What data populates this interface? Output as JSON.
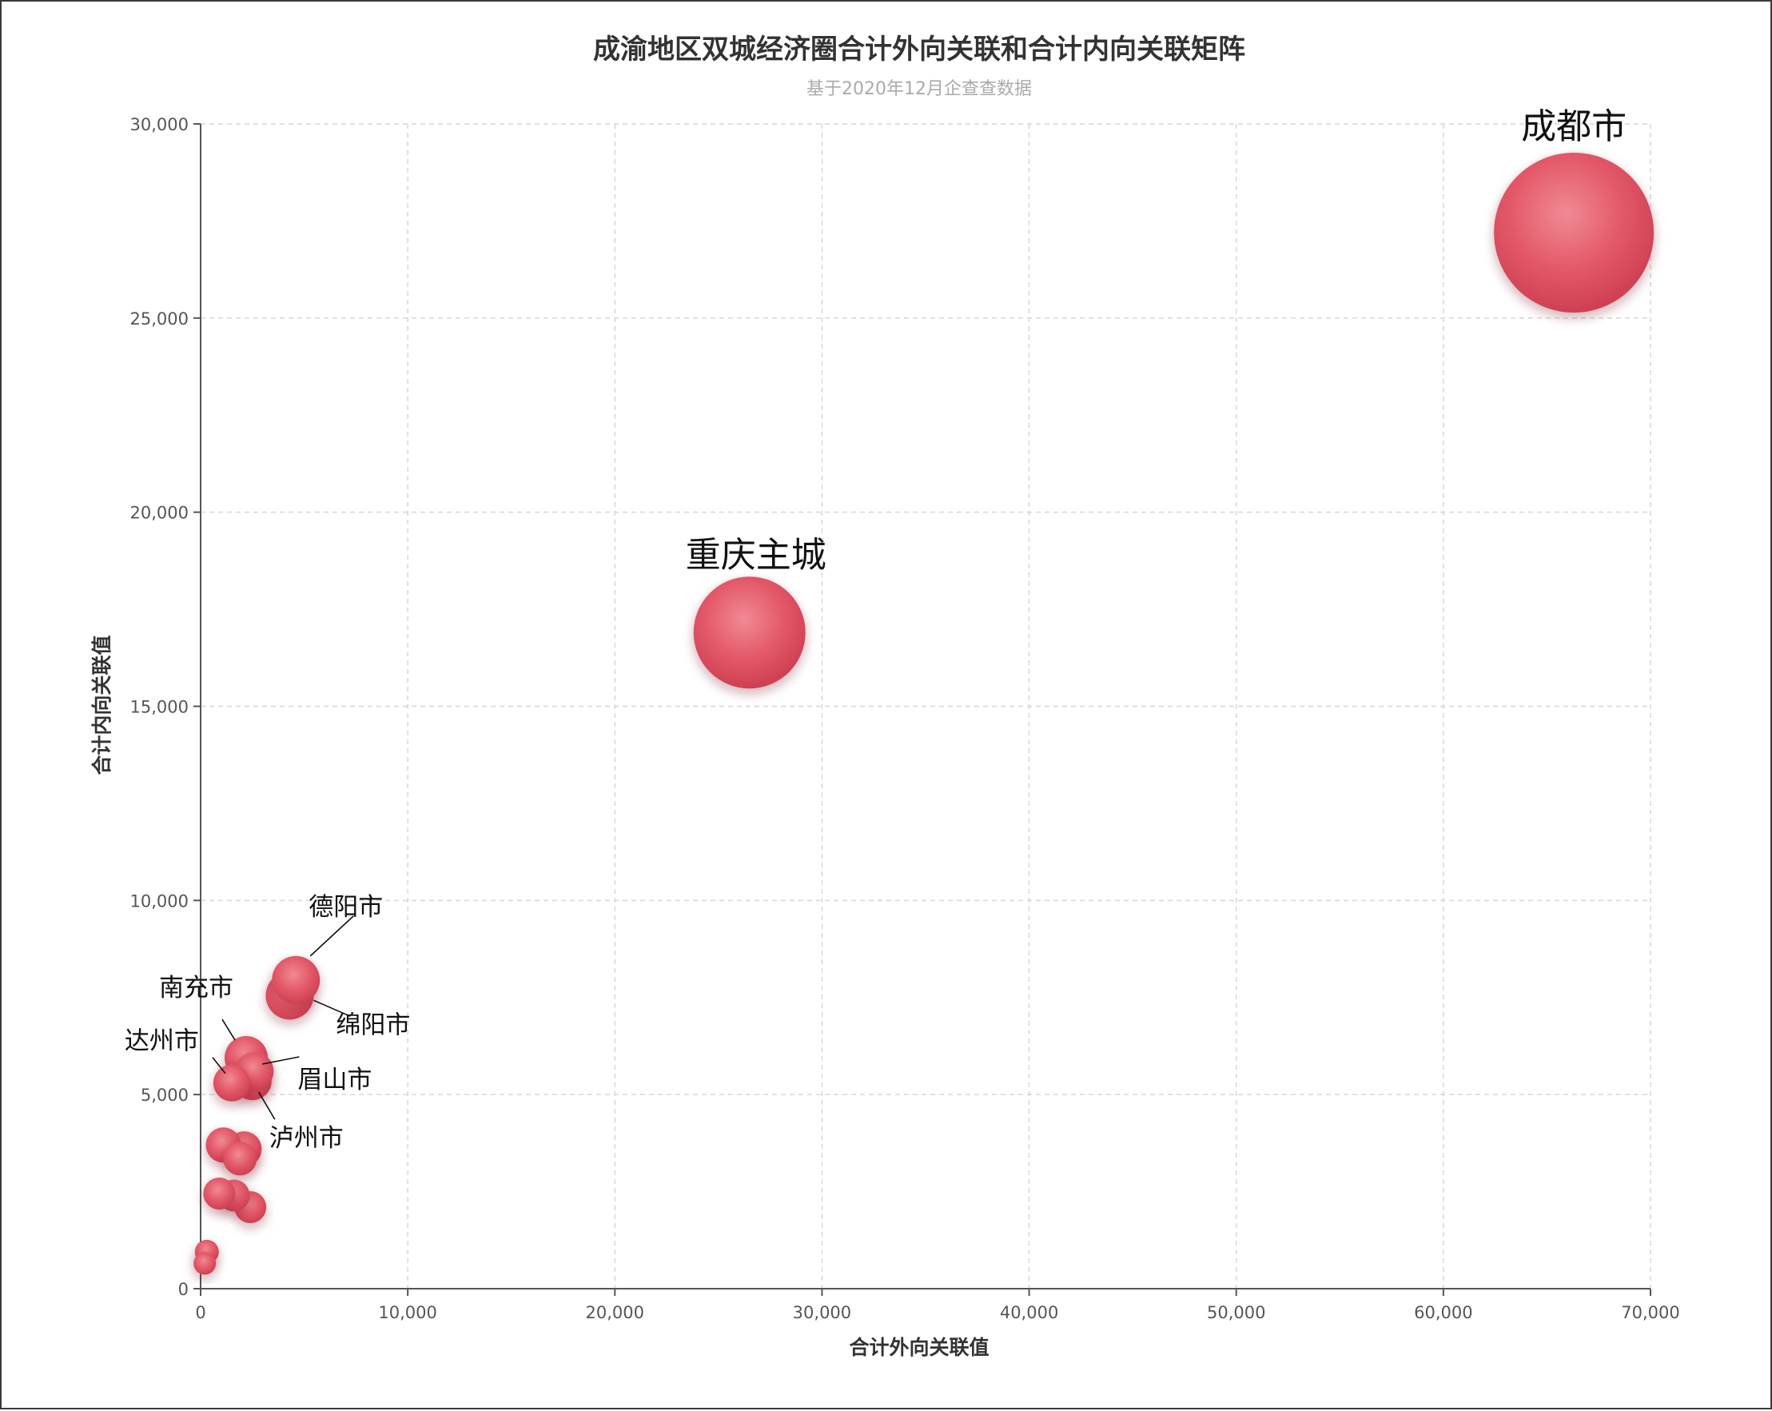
{
  "chart_data": {
    "type": "scatter",
    "title": "成渝地区双城经济圈合计外向关联和合计内向关联矩阵",
    "subtitle": "基于2020年12月企查查数据",
    "xlabel": "合计外向关联值",
    "ylabel": "合计内向关联值",
    "xlim": [
      0,
      70000
    ],
    "ylim": [
      0,
      30000
    ],
    "x_ticks": [
      0,
      10000,
      20000,
      30000,
      40000,
      50000,
      60000,
      70000
    ],
    "y_ticks": [
      0,
      5000,
      10000,
      15000,
      20000,
      25000,
      30000
    ],
    "x_tick_labels": [
      "0",
      "10,000",
      "20,000",
      "30,000",
      "40,000",
      "50,000",
      "60,000",
      "70,000"
    ],
    "y_tick_labels": [
      "0",
      "5,000",
      "10,000",
      "15,000",
      "20,000",
      "25,000",
      "30,000"
    ],
    "grid": true,
    "bubble_color": "#e05668",
    "points": [
      {
        "name": "成都市",
        "x": 66300,
        "y": 27200,
        "size": 100
      },
      {
        "name": "重庆主城",
        "x": 26500,
        "y": 16900,
        "size": 70
      },
      {
        "name": "德阳市",
        "x": 4600,
        "y": 7950,
        "size": 30
      },
      {
        "name": "绵阳市",
        "x": 4300,
        "y": 7550,
        "size": 30
      },
      {
        "name": "南充市",
        "x": 2200,
        "y": 5950,
        "size": 27
      },
      {
        "name": "眉山市",
        "x": 2600,
        "y": 5600,
        "size": 24
      },
      {
        "name": "泸州市",
        "x": 2500,
        "y": 5350,
        "size": 24
      },
      {
        "name": "达州市",
        "x": 1500,
        "y": 5300,
        "size": 23
      },
      {
        "name": "",
        "x": 1100,
        "y": 3700,
        "size": 22
      },
      {
        "name": "",
        "x": 2100,
        "y": 3600,
        "size": 22
      },
      {
        "name": "",
        "x": 1900,
        "y": 3350,
        "size": 21
      },
      {
        "name": "",
        "x": 900,
        "y": 2450,
        "size": 20
      },
      {
        "name": "",
        "x": 1600,
        "y": 2400,
        "size": 20
      },
      {
        "name": "",
        "x": 2400,
        "y": 2100,
        "size": 20
      },
      {
        "name": "",
        "x": 300,
        "y": 950,
        "size": 15
      },
      {
        "name": "",
        "x": 200,
        "y": 650,
        "size": 14
      }
    ]
  }
}
